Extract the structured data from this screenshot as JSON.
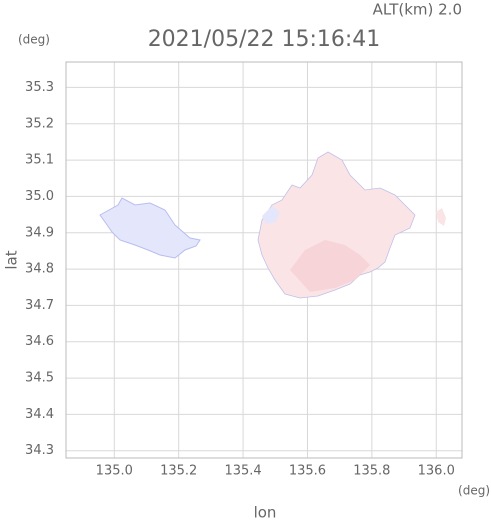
{
  "chart_data": {
    "type": "map",
    "title": "2021/05/22 15:16:41",
    "altitude_label": "ALT(km) 2.0",
    "y_unit": "(deg)",
    "x_unit": "(deg)",
    "x_label": "lon",
    "y_label": "lat",
    "xlim": [
      134.85,
      136.08
    ],
    "xticks": [
      {
        "value": 135.0,
        "label": "135.0"
      },
      135.2,
      135.4,
      135.6,
      135.8,
      {
        "value": 136.0,
        "label": "136.0"
      }
    ],
    "ylim": [
      34.28,
      35.37
    ],
    "yticks": [
      35.3,
      35.2,
      35.1,
      {
        "value": 35.0,
        "label": "35.0"
      },
      34.9,
      34.8,
      34.7,
      34.6,
      34.5,
      34.4,
      34.3
    ],
    "grid": true
  }
}
